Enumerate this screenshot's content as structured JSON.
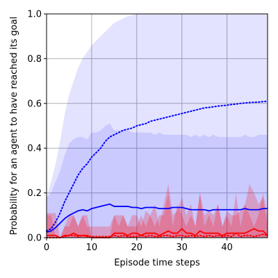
{
  "chart_data": {
    "type": "line",
    "title": "",
    "xlabel": "Episode time steps",
    "ylabel": "Probability for an agent to have reached its goal",
    "xlim": [
      0,
      49
    ],
    "ylim": [
      0,
      1
    ],
    "xticks": [
      0,
      10,
      20,
      30,
      40
    ],
    "yticks": [
      0.0,
      0.2,
      0.4,
      0.6,
      0.8,
      1.0
    ],
    "grid": true,
    "legend": "none",
    "x": [
      0,
      1,
      2,
      3,
      4,
      5,
      6,
      7,
      8,
      9,
      10,
      11,
      12,
      13,
      14,
      15,
      16,
      17,
      18,
      19,
      20,
      21,
      22,
      23,
      24,
      25,
      26,
      27,
      28,
      29,
      30,
      31,
      32,
      33,
      34,
      35,
      36,
      37,
      38,
      39,
      40,
      41,
      42,
      43,
      44,
      45,
      46,
      47,
      48,
      49
    ],
    "series": [
      {
        "color": "#0000ff",
        "style": "dotted",
        "values": [
          0.03,
          0.04,
          0.07,
          0.11,
          0.16,
          0.2,
          0.24,
          0.28,
          0.31,
          0.33,
          0.36,
          0.38,
          0.4,
          0.43,
          0.45,
          0.46,
          0.47,
          0.48,
          0.485,
          0.49,
          0.5,
          0.505,
          0.51,
          0.52,
          0.525,
          0.53,
          0.535,
          0.54,
          0.545,
          0.55,
          0.555,
          0.56,
          0.565,
          0.57,
          0.575,
          0.58,
          0.582,
          0.585,
          0.588,
          0.59,
          0.592,
          0.595,
          0.597,
          0.6,
          0.602,
          0.604,
          0.605,
          0.606,
          0.608,
          0.61
        ],
        "band_low": [
          0,
          0,
          0,
          0,
          0,
          0,
          0,
          0,
          0,
          0,
          0,
          0,
          0,
          0,
          0,
          0,
          0,
          0,
          0,
          0,
          0,
          0,
          0,
          0,
          0,
          0,
          0,
          0,
          0,
          0,
          0,
          0,
          0,
          0,
          0,
          0,
          0,
          0,
          0,
          0,
          0,
          0,
          0,
          0,
          0,
          0,
          0,
          0,
          0,
          0
        ],
        "band_high": [
          0.18,
          0.25,
          0.33,
          0.43,
          0.55,
          0.64,
          0.7,
          0.76,
          0.8,
          0.83,
          0.86,
          0.88,
          0.9,
          0.92,
          0.94,
          0.96,
          0.97,
          0.98,
          0.99,
          0.995,
          1,
          1,
          1,
          1,
          1,
          1,
          1,
          1,
          1,
          1,
          1,
          1,
          1,
          1,
          1,
          1,
          1,
          1,
          1,
          1,
          1,
          1,
          1,
          1,
          1,
          1,
          1,
          1,
          1,
          1
        ]
      },
      {
        "color": "#0000ff",
        "style": "solid",
        "values": [
          0.025,
          0.03,
          0.045,
          0.065,
          0.085,
          0.1,
          0.11,
          0.12,
          0.125,
          0.12,
          0.13,
          0.135,
          0.14,
          0.145,
          0.15,
          0.14,
          0.14,
          0.14,
          0.14,
          0.135,
          0.135,
          0.13,
          0.135,
          0.135,
          0.135,
          0.13,
          0.13,
          0.13,
          0.135,
          0.135,
          0.135,
          0.13,
          0.125,
          0.125,
          0.125,
          0.125,
          0.12,
          0.125,
          0.125,
          0.125,
          0.125,
          0.125,
          0.125,
          0.125,
          0.13,
          0.125,
          0.125,
          0.125,
          0.13,
          0.13
        ],
        "band_low": [
          0,
          0,
          0,
          0,
          0,
          0,
          0,
          0,
          0,
          0,
          0,
          0,
          0,
          0,
          0,
          0,
          0,
          0,
          0,
          0,
          0,
          0,
          0,
          0,
          0,
          0,
          0,
          0,
          0,
          0,
          0,
          0,
          0,
          0,
          0,
          0,
          0,
          0,
          0,
          0,
          0,
          0,
          0,
          0,
          0,
          0,
          0,
          0,
          0,
          0
        ],
        "band_high": [
          0.18,
          0.2,
          0.25,
          0.3,
          0.37,
          0.42,
          0.44,
          0.45,
          0.45,
          0.44,
          0.47,
          0.47,
          0.48,
          0.5,
          0.51,
          0.48,
          0.48,
          0.48,
          0.48,
          0.47,
          0.47,
          0.47,
          0.47,
          0.47,
          0.46,
          0.47,
          0.46,
          0.46,
          0.46,
          0.46,
          0.46,
          0.46,
          0.45,
          0.46,
          0.45,
          0.46,
          0.45,
          0.46,
          0.45,
          0.45,
          0.45,
          0.45,
          0.45,
          0.45,
          0.46,
          0.45,
          0.45,
          0.46,
          0.46,
          0.46
        ]
      },
      {
        "color": "#ff0000",
        "style": "dotted",
        "values": [
          0,
          0,
          0,
          0,
          0.005,
          0.01,
          0.01,
          0.005,
          0.01,
          0.005,
          0.005,
          0.005,
          0.005,
          0.005,
          0.005,
          0.01,
          0.005,
          0.01,
          0.005,
          0.005,
          0.005,
          0.01,
          0.005,
          0.01,
          0.005,
          0.005,
          0.01,
          0.01,
          0.005,
          0.01,
          0.01,
          0.005,
          0.01,
          0.005,
          0.01,
          0.005,
          0.01,
          0.005,
          0.01,
          0.005,
          0.01,
          0.005,
          0.02,
          0.005,
          0.01,
          0.01,
          0.005,
          0.01,
          0.015,
          0.01
        ],
        "band_low": [
          0,
          0,
          0,
          0,
          0,
          0,
          0,
          0,
          0,
          0,
          0,
          0,
          0,
          0,
          0,
          0,
          0,
          0,
          0,
          0,
          0,
          0,
          0,
          0,
          0,
          0,
          0,
          0,
          0,
          0,
          0,
          0,
          0,
          0,
          0,
          0,
          0,
          0,
          0,
          0,
          0,
          0,
          0,
          0,
          0,
          0,
          0,
          0,
          0,
          0
        ],
        "band_high": [
          0.1,
          0.1,
          0,
          0,
          0.05,
          0.1,
          0.1,
          0.05,
          0.1,
          0.05,
          0.05,
          0.05,
          0.05,
          0.05,
          0.05,
          0.1,
          0.05,
          0.1,
          0.05,
          0.05,
          0.05,
          0.1,
          0.05,
          0.1,
          0.05,
          0.1,
          0.1,
          0.2,
          0.05,
          0.15,
          0.1,
          0.05,
          0.1,
          0.05,
          0.2,
          0.05,
          0.1,
          0.05,
          0.15,
          0.05,
          0.1,
          0.05,
          0.2,
          0.05,
          0.15,
          0.1,
          0.05,
          0.1,
          0.2,
          0.1
        ]
      },
      {
        "color": "#ff0000",
        "style": "solid",
        "values": [
          0.01,
          0.01,
          0.01,
          0,
          0.01,
          0.01,
          0.02,
          0.01,
          0.01,
          0.01,
          0,
          0,
          0,
          0,
          0,
          0.02,
          0.02,
          0.02,
          0.01,
          0.02,
          0.02,
          0.01,
          0.02,
          0.02,
          0.02,
          0.01,
          0.02,
          0.03,
          0.02,
          0.02,
          0.04,
          0.02,
          0.02,
          0.01,
          0.03,
          0.02,
          0.02,
          0.02,
          0.02,
          0.01,
          0.02,
          0.02,
          0.02,
          0.02,
          0.02,
          0.03,
          0.04,
          0.03,
          0.03,
          0.01
        ],
        "band_low": [
          0,
          0,
          0,
          0,
          0,
          0,
          0,
          0,
          0,
          0,
          0,
          0,
          0,
          0,
          0,
          0,
          0,
          0,
          0,
          0,
          0,
          0,
          0,
          0,
          0,
          0,
          0,
          0,
          0,
          0,
          0,
          0,
          0,
          0,
          0,
          0,
          0,
          0,
          0,
          0,
          0,
          0,
          0,
          0,
          0,
          0,
          0,
          0,
          0,
          0
        ],
        "band_high": [
          0.11,
          0.11,
          0.11,
          0,
          0.05,
          0.05,
          0.1,
          0.05,
          0.1,
          0.1,
          0,
          0,
          0,
          0,
          0,
          0.1,
          0.1,
          0.1,
          0.05,
          0.1,
          0.1,
          0.05,
          0.12,
          0.1,
          0.15,
          0.05,
          0.15,
          0.24,
          0.1,
          0.12,
          0.18,
          0.1,
          0.15,
          0.05,
          0.2,
          0.1,
          0.12,
          0.1,
          0.15,
          0.05,
          0.12,
          0.1,
          0.1,
          0.12,
          0.15,
          0.24,
          0.2,
          0.15,
          0.18,
          0.05
        ]
      }
    ]
  }
}
